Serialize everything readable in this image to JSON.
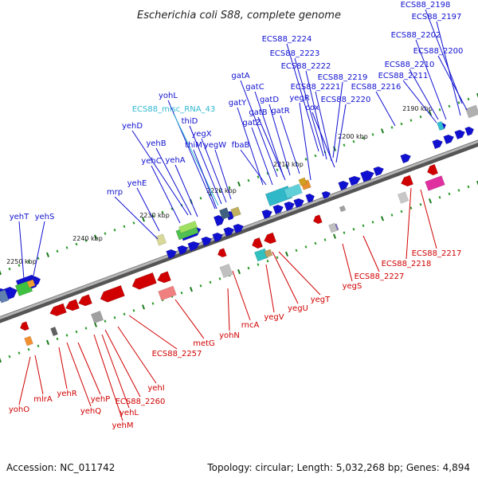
{
  "title": "Escherichia coli S88, complete genome",
  "footer": {
    "accession": "Accession: NC_011742",
    "summary": "Topology: circular; Length: 5,032,268 bp; Genes: 4,894"
  },
  "colors": {
    "forward": "#1010d0",
    "reverse": "#d00000",
    "rna": "#30b8d0",
    "backbone": "#808080"
  },
  "kbp_labels": [
    "2250 kbp",
    "2240 kbp",
    "2230 kbp",
    "2220 kbp",
    "2210 kbp",
    "2200 kbp",
    "2190 kbp"
  ],
  "forward_labels": [
    "ECS88_2198",
    "ECS88_2197",
    "ECS88_2224",
    "ECS88_2202",
    "ECS88_2223",
    "ECS88_2200",
    "ECS88_2222",
    "ECS88_2210",
    "gatA",
    "ECS88_2219",
    "ECS88_2211",
    "ECS88_2221",
    "ECS88_2216",
    "gatC",
    "yegR",
    "ECS88_2220",
    "yohL",
    "gatY",
    "gatD",
    "cox",
    "gatB",
    "gatR",
    "ECS88_misc_RNA_43",
    "thiD",
    "gatZ",
    "yehD",
    "yegX",
    "thiM",
    "yegW",
    "fbaB",
    "yehB",
    "yehC",
    "yehA",
    "yehE",
    "mrp",
    "yehT",
    "yehS"
  ],
  "reverse_labels": [
    "ECS88_2217",
    "ECS88_2218",
    "ECS88_2227",
    "yegS",
    "yegT",
    "yegU",
    "yegV",
    "rncA",
    "yohN",
    "metG",
    "ECS88_2257",
    "yehI",
    "ECS88_2260",
    "yehL",
    "yehM",
    "yehP",
    "yehQ",
    "yehR",
    "mlrA",
    "yohO"
  ]
}
